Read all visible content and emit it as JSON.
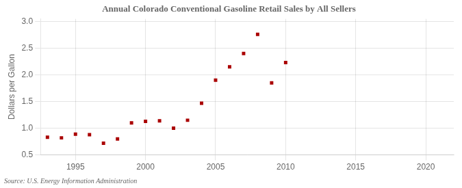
{
  "chart_data": {
    "type": "scatter",
    "title": "Annual Colorado Conventional Gasoline Retail Sales by All Sellers",
    "ylabel": "Dollars per Gallon",
    "source": "Source: U.S. Energy Information Administration",
    "x": [
      1993,
      1994,
      1995,
      1996,
      1997,
      1998,
      1999,
      2000,
      2001,
      2002,
      2003,
      2004,
      2005,
      2006,
      2007,
      2008,
      2009,
      2010
    ],
    "values": [
      0.83,
      0.82,
      0.89,
      0.88,
      0.72,
      0.8,
      1.1,
      1.13,
      1.14,
      1.0,
      1.15,
      1.47,
      1.9,
      2.15,
      2.4,
      2.76,
      1.85,
      2.23
    ],
    "color": "#aa0000",
    "marker": "square",
    "xlim": [
      1992.5,
      2022
    ],
    "xticks": [
      1995,
      2000,
      2005,
      2010,
      2015,
      2020
    ],
    "ylim": [
      0.5,
      3.05
    ],
    "yticks": [
      0.5,
      {
        "value": 1.0,
        "label": "1.0"
      },
      1.5,
      {
        "value": 2.0,
        "label": "2.0"
      },
      2.5,
      {
        "value": 3.0,
        "label": "3.0"
      }
    ],
    "grid": true
  }
}
